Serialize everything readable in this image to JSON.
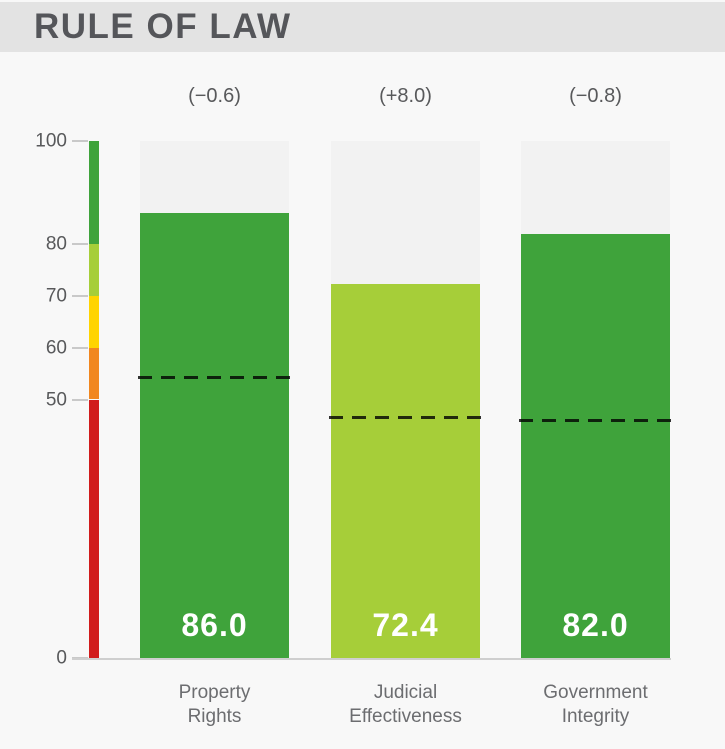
{
  "header": {
    "title": "RULE OF LAW",
    "bg_color": "#e3e3e3",
    "text_color": "#55565a"
  },
  "chart_data": {
    "type": "bar",
    "title": "RULE OF LAW",
    "xlabel": "",
    "ylabel": "",
    "ylim": [
      0,
      100
    ],
    "grid": false,
    "legend": null,
    "yticks": [
      100,
      80,
      70,
      60,
      50,
      0
    ],
    "ytick_labels": [
      "100",
      "80",
      "70",
      "60",
      "50",
      "0"
    ],
    "categories": [
      "Property\nRights",
      "Judicial\nEffectiveness",
      "Government\nIntegrity"
    ],
    "values": [
      86.0,
      72.4,
      82.0
    ],
    "value_labels": [
      "86.0",
      "72.4",
      "82.0"
    ],
    "changes": [
      "(−0.6)",
      "(+8.0)",
      "(−0.8)"
    ],
    "benchmarks": [
      54.2,
      46.6,
      46.0
    ],
    "benchmark_style": "dashed-black-line",
    "bar_colors": [
      "#3fa33b",
      "#a6ce39",
      "#3fa33b"
    ],
    "track_color": "#f2f2f2",
    "value_text_color": "#ffffff",
    "scale_bands": [
      {
        "from": 80,
        "to": 100,
        "color": "#3fa33b"
      },
      {
        "from": 70,
        "to": 80,
        "color": "#a6ce39"
      },
      {
        "from": 60,
        "to": 70,
        "color": "#ffd400"
      },
      {
        "from": 50,
        "to": 60,
        "color": "#f1871f"
      },
      {
        "from": 0,
        "to": 50,
        "color": "#d11c1c"
      }
    ]
  }
}
